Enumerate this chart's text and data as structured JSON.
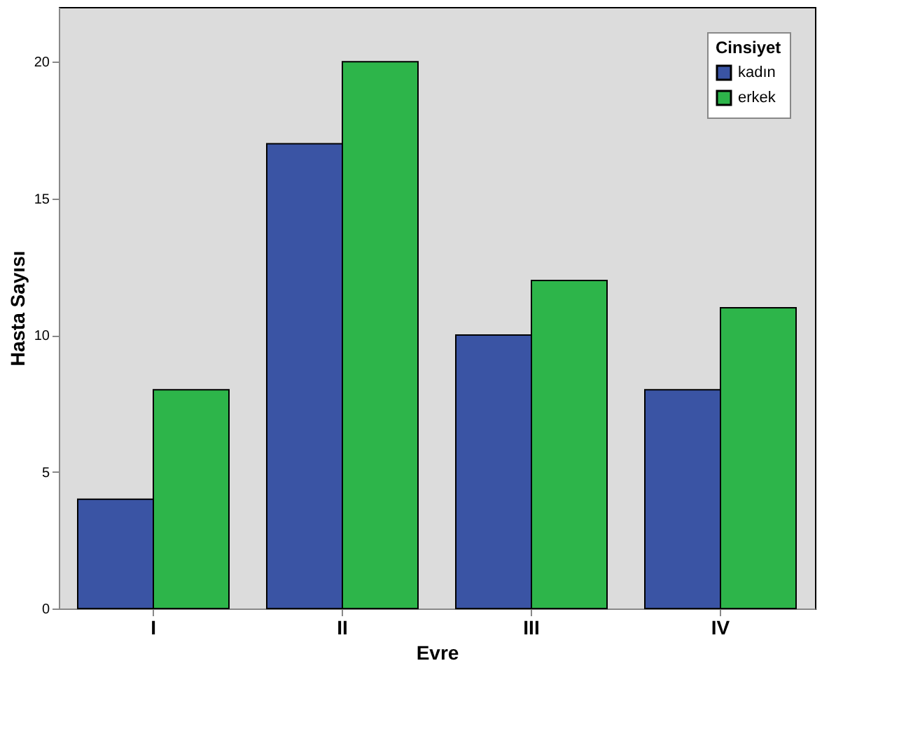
{
  "chart_data": {
    "type": "bar",
    "xlabel": "Evre",
    "ylabel": "Hasta Sayısı",
    "legend_title": "Cinsiyet",
    "categories": [
      "I",
      "II",
      "III",
      "IV"
    ],
    "series": [
      {
        "name": "kadın",
        "color": "#3a54a4",
        "values": [
          4,
          17,
          10,
          8
        ]
      },
      {
        "name": "erkek",
        "color": "#2db54a",
        "values": [
          8,
          20,
          12,
          11
        ]
      }
    ],
    "ylim": [
      0,
      22
    ],
    "yticks": [
      0,
      5,
      10,
      15,
      20
    ],
    "grid": false,
    "legend": "top right"
  }
}
